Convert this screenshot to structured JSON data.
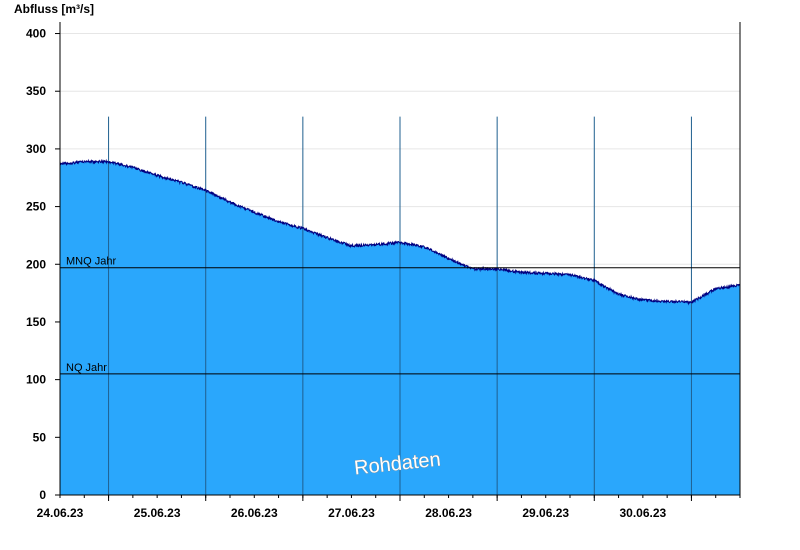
{
  "chart_data": {
    "type": "area",
    "ylabel": "Abfluss [m³/s]",
    "ylim": [
      0,
      410
    ],
    "yticks": [
      0,
      50,
      100,
      150,
      200,
      250,
      300,
      350,
      400
    ],
    "xlim": [
      "2023-06-23T12:00",
      "2023-06-30T12:00"
    ],
    "xticks": [
      "24.06.23",
      "25.06.23",
      "26.06.23",
      "27.06.23",
      "28.06.23",
      "29.06.23",
      "30.06.23"
    ],
    "grid": "horizontal light lines, vertical lines at midnight",
    "fill_color": "#2aa7fc",
    "line_color": "#000080",
    "series": [
      {
        "x": [
          "2023-06-23T12:00",
          "2023-06-23T18:00",
          "2023-06-24T00:00",
          "2023-06-24T06:00",
          "2023-06-24T12:00",
          "2023-06-24T18:00",
          "2023-06-25T00:00",
          "2023-06-25T06:00",
          "2023-06-25T12:00",
          "2023-06-25T18:00",
          "2023-06-26T00:00",
          "2023-06-26T06:00",
          "2023-06-26T12:00",
          "2023-06-26T18:00",
          "2023-06-27T00:00",
          "2023-06-27T06:00",
          "2023-06-27T12:00",
          "2023-06-27T18:00",
          "2023-06-28T00:00",
          "2023-06-28T06:00",
          "2023-06-28T12:00",
          "2023-06-28T18:00",
          "2023-06-29T00:00",
          "2023-06-29T06:00",
          "2023-06-29T12:00",
          "2023-06-29T18:00",
          "2023-06-30T00:00",
          "2023-06-30T06:00",
          "2023-06-30T12:00"
        ],
        "y": [
          288,
          290,
          290,
          285,
          278,
          272,
          265,
          255,
          246,
          238,
          232,
          224,
          217,
          218,
          220,
          216,
          206,
          197,
          197,
          194,
          193,
          192,
          187,
          175,
          170,
          169,
          168,
          180,
          183
        ]
      }
    ],
    "reference_lines": [
      {
        "label": "MNQ Jahr",
        "value": 197
      },
      {
        "label": "NQ Jahr",
        "value": 105
      }
    ],
    "watermark": "Rohdaten"
  }
}
